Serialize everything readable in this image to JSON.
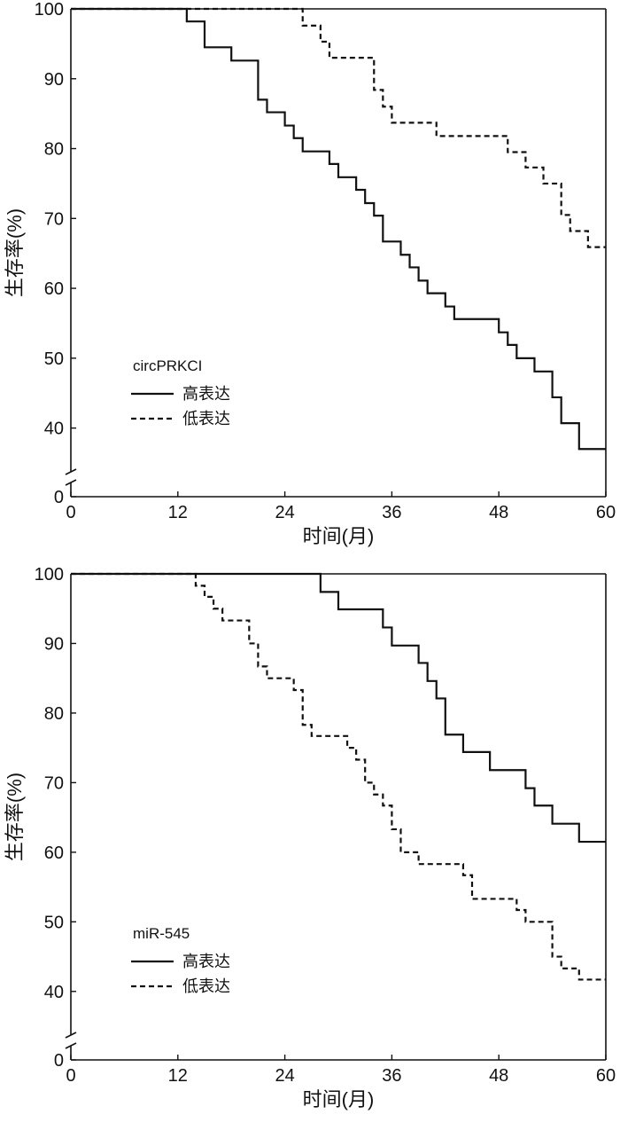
{
  "chart_data": [
    {
      "type": "line",
      "step": true,
      "legend": {
        "title": "circPRKCI",
        "placement": "lower-left"
      },
      "xlabel": "时间(月)",
      "ylabel": "生存率(%)",
      "xlim": [
        0,
        60
      ],
      "ylim": [
        0,
        100
      ],
      "y_axis_break": [
        0,
        35
      ],
      "xticks": [
        "0",
        "12",
        "24",
        "36",
        "48",
        "60"
      ],
      "yticks": [
        "0",
        "40",
        "50",
        "60",
        "70",
        "80",
        "90",
        "100"
      ],
      "grid": false,
      "series": [
        {
          "name": "高表达",
          "style": "solid",
          "x": [
            0,
            13,
            15,
            18,
            21,
            22,
            24,
            25,
            26,
            29,
            30,
            32,
            33,
            34,
            35,
            37,
            38,
            39,
            40,
            42,
            43,
            48,
            49,
            50,
            52,
            54,
            55,
            57,
            59,
            60
          ],
          "y": [
            100,
            98.2,
            94.5,
            92.6,
            87.0,
            85.2,
            83.3,
            81.5,
            79.6,
            77.8,
            75.9,
            74.1,
            72.2,
            70.4,
            66.7,
            64.8,
            63.0,
            61.1,
            59.3,
            57.4,
            55.6,
            53.7,
            51.9,
            50.0,
            48.1,
            44.4,
            40.7,
            37.0,
            37.0,
            37.0
          ]
        },
        {
          "name": "低表达",
          "style": "dashed",
          "x": [
            0,
            26,
            28,
            29,
            34,
            35,
            36,
            41,
            49,
            51,
            53,
            55,
            56,
            58,
            60
          ],
          "y": [
            100,
            97.6,
            95.3,
            93.0,
            88.4,
            86.0,
            83.7,
            81.8,
            79.5,
            77.3,
            75.0,
            70.5,
            68.2,
            65.9,
            65.9
          ]
        }
      ]
    },
    {
      "type": "line",
      "step": true,
      "legend": {
        "title": "miR-545",
        "placement": "lower-left"
      },
      "xlabel": "时间(月)",
      "ylabel": "生存率(%)",
      "xlim": [
        0,
        60
      ],
      "ylim": [
        0,
        100
      ],
      "y_axis_break": [
        0,
        35
      ],
      "xticks": [
        "0",
        "12",
        "24",
        "36",
        "48",
        "60"
      ],
      "yticks": [
        "0",
        "40",
        "50",
        "60",
        "70",
        "80",
        "90",
        "100"
      ],
      "grid": false,
      "series": [
        {
          "name": "高表达",
          "style": "solid",
          "x": [
            0,
            28,
            30,
            35,
            36,
            39,
            40,
            41,
            42,
            44,
            47,
            51,
            52,
            54,
            57,
            60
          ],
          "y": [
            100,
            97.4,
            94.9,
            92.3,
            89.7,
            87.2,
            84.6,
            82.1,
            76.9,
            74.4,
            71.8,
            69.2,
            66.7,
            64.1,
            61.5,
            61.5
          ]
        },
        {
          "name": "低表达",
          "style": "dashed",
          "x": [
            0,
            14,
            15,
            16,
            17,
            20,
            21,
            22,
            25,
            26,
            27,
            31,
            32,
            33,
            34,
            35,
            36,
            37,
            39,
            44,
            45,
            50,
            51,
            54,
            55,
            57,
            58,
            60
          ],
          "y": [
            100,
            98.3,
            96.7,
            95.0,
            93.3,
            90.0,
            86.7,
            85.0,
            83.3,
            78.3,
            76.7,
            75.0,
            73.3,
            70.0,
            68.3,
            66.7,
            63.3,
            60.0,
            58.3,
            56.7,
            53.3,
            51.7,
            50.0,
            45.0,
            43.3,
            41.7,
            41.7,
            41.7
          ]
        }
      ]
    }
  ]
}
